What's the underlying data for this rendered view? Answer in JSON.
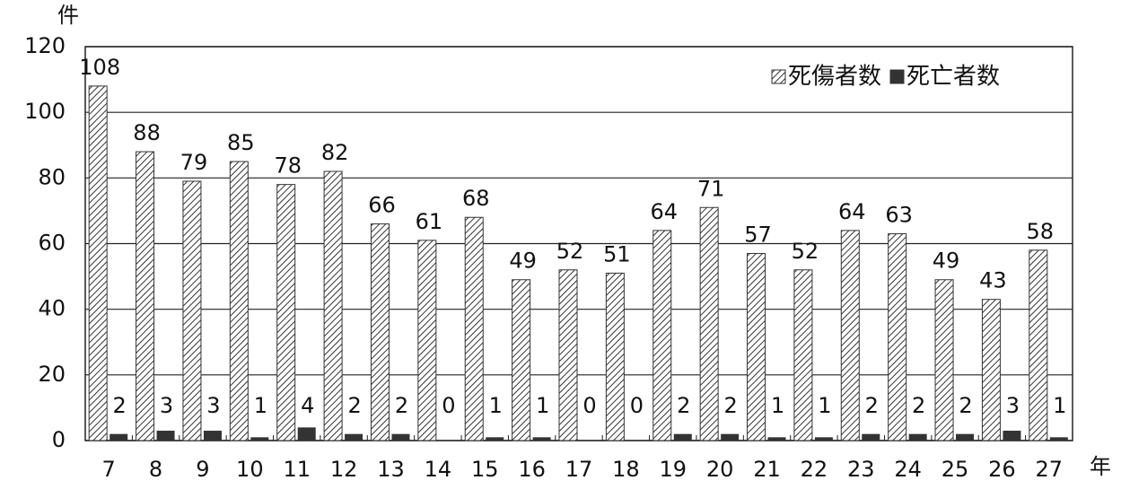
{
  "chart_data": {
    "type": "bar",
    "y_label": "件",
    "x_label": "年",
    "categories": [
      "7",
      "8",
      "9",
      "10",
      "11",
      "12",
      "13",
      "14",
      "15",
      "16",
      "17",
      "18",
      "19",
      "20",
      "21",
      "22",
      "23",
      "24",
      "25",
      "26",
      "27"
    ],
    "series": [
      {
        "name": "死傷者数",
        "color": "#333333",
        "pattern": "hatch",
        "values": [
          108,
          88,
          79,
          85,
          78,
          82,
          66,
          61,
          68,
          49,
          52,
          51,
          64,
          71,
          57,
          52,
          64,
          63,
          49,
          43,
          58
        ]
      },
      {
        "name": "死亡者数",
        "color": "#333333",
        "values": [
          2,
          3,
          3,
          1,
          4,
          2,
          2,
          0,
          1,
          1,
          0,
          0,
          2,
          2,
          1,
          1,
          2,
          2,
          2,
          3,
          1
        ]
      }
    ],
    "ylim": [
      0,
      120
    ],
    "yticks": [
      0,
      20,
      40,
      60,
      80,
      100,
      120
    ],
    "grid": true,
    "legend": "upper right"
  }
}
